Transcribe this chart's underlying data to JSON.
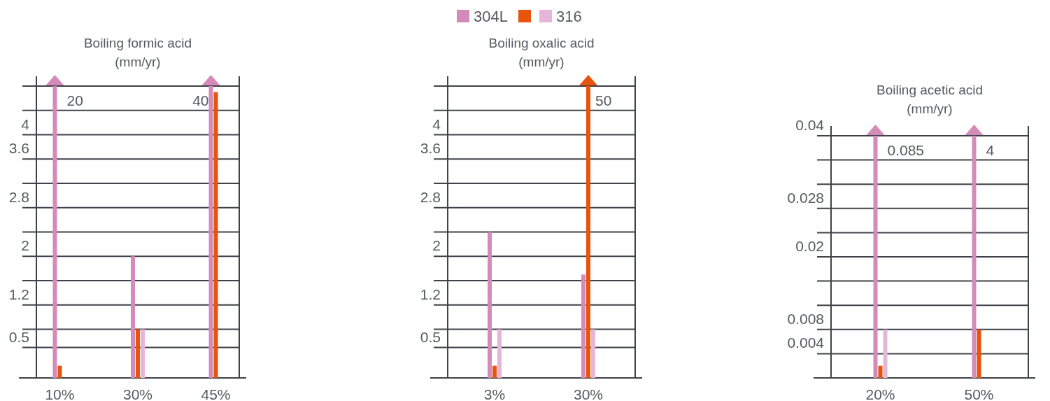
{
  "chart_data": [
    {
      "type": "bar",
      "title": "Boiling formic acid",
      "subtitle": "(mm/yr)",
      "categories": [
        "10%",
        "30%",
        "45%"
      ],
      "series": [
        {
          "name": "304L",
          "color": "#d48bb9",
          "values": [
            4.8,
            2.0,
            4.8
          ]
        },
        {
          "color": "#e8530e",
          "values": [
            0.2,
            0.8,
            4.7
          ]
        },
        {
          "name": "316",
          "color": "#e6b6d8",
          "values": [
            null,
            0.8,
            null
          ]
        }
      ],
      "ylim": [
        0,
        4.8
      ],
      "yticks": [
        0.5,
        {
          "value": 0.8,
          "label": null
        },
        1.2,
        {
          "value": 1.6,
          "label": null
        },
        2,
        {
          "value": 2.4,
          "label": null
        },
        2.8,
        {
          "value": 3.2,
          "label": null
        },
        3.6,
        4,
        {
          "value": 4.4,
          "label": null
        },
        {
          "value": 4.8,
          "label": null
        }
      ],
      "grid": "y",
      "legend": "top",
      "annotations": [
        {
          "text": "20",
          "x": "10%",
          "y": 4.8
        },
        {
          "text": "40",
          "x": "45%",
          "y": 4.8
        }
      ]
    },
    {
      "type": "bar",
      "title": "Boiling oxalic acid",
      "subtitle": "(mm/yr)",
      "categories": [
        "3%",
        "30%"
      ],
      "series": [
        {
          "color": "#d48bb9",
          "values": [
            2.4,
            1.7
          ]
        },
        {
          "color": "#e8530e",
          "values": [
            0.2,
            4.8
          ]
        },
        {
          "color": "#e6b6d8",
          "values": [
            0.8,
            0.8
          ]
        }
      ],
      "ylim": [
        0,
        4.8
      ],
      "yticks": [
        0.5,
        {
          "value": 0.8,
          "label": null
        },
        1.2,
        {
          "value": 1.6,
          "label": null
        },
        2,
        {
          "value": 2.4,
          "label": null
        },
        2.8,
        {
          "value": 3.2,
          "label": null
        },
        3.6,
        4,
        {
          "value": 4.4,
          "label": null
        },
        {
          "value": 4.8,
          "label": null
        }
      ],
      "grid": "y",
      "annotations": [
        {
          "text": "50",
          "x": "30%",
          "y": 4.8
        }
      ]
    },
    {
      "type": "bar",
      "title": "Boiling acetic acid",
      "subtitle": "(mm/yr)",
      "categories": [
        "20%",
        "50%"
      ],
      "series": [
        {
          "color": "#d48bb9",
          "values": [
            0.04,
            0.04
          ]
        },
        {
          "color": "#e8530e",
          "values": [
            0.002,
            0.008
          ]
        },
        {
          "color": "#e6b6d8",
          "values": [
            0.008,
            null
          ]
        }
      ],
      "ylim": [
        0,
        0.04
      ],
      "yticks": [
        0.004,
        0.008,
        {
          "value": 0.012,
          "label": null
        },
        {
          "value": 0.016,
          "label": null
        },
        0.02,
        {
          "value": 0.024,
          "label": null
        },
        0.028,
        {
          "value": 0.032,
          "label": null
        },
        {
          "value": 0.036,
          "label": null
        },
        0.04
      ],
      "grid": "y",
      "annotations": [
        {
          "text": "0.085",
          "x": "20%",
          "y": 0.04
        },
        {
          "text": "4",
          "x": "50%",
          "y": 0.04
        }
      ]
    }
  ]
}
